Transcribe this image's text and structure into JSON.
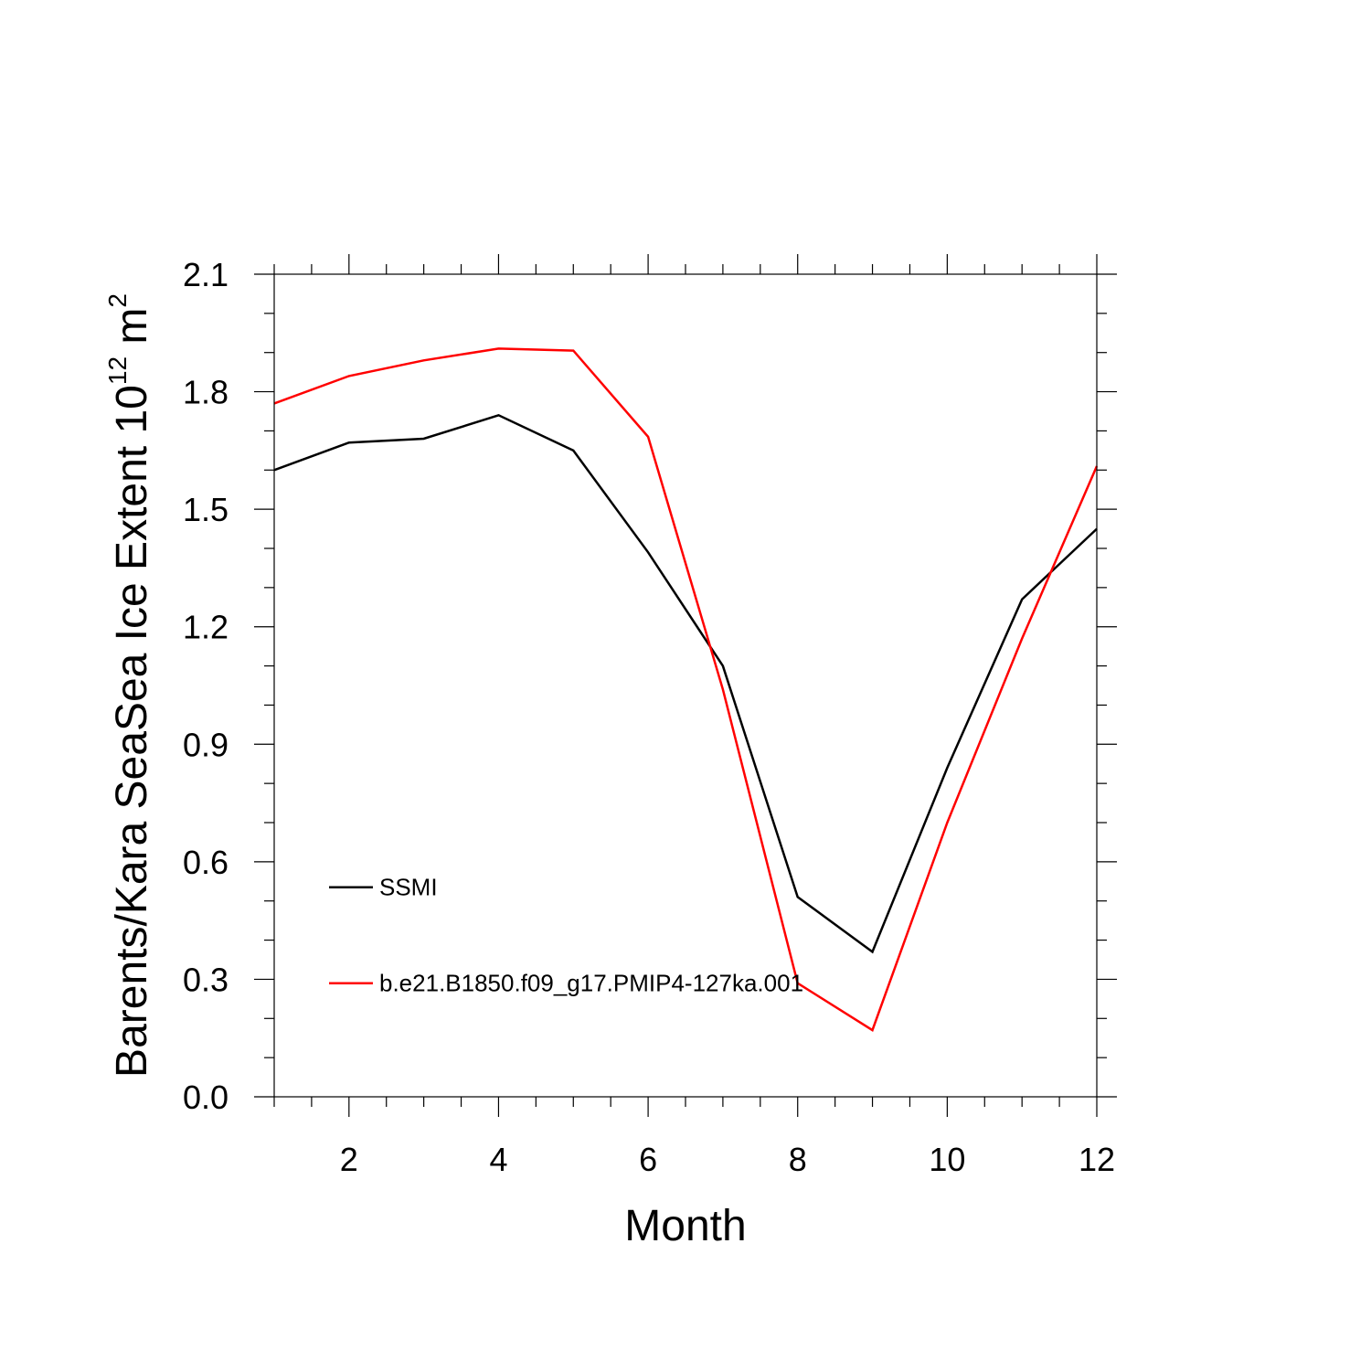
{
  "chart_data": {
    "type": "line",
    "title": "",
    "xlabel": "Month",
    "ylabel_main": "Barents/Kara SeaSea Ice Extent 10",
    "ylabel_exponent": "12",
    "ylabel_unit": " m",
    "ylabel_unit_exponent": "2",
    "xlim": [
      1,
      12
    ],
    "ylim": [
      0.0,
      2.1
    ],
    "x_major_ticks": [
      2,
      4,
      6,
      8,
      10,
      12
    ],
    "x_tick_labels": [
      "2",
      "4",
      "6",
      "8",
      "10",
      "12"
    ],
    "x_minor_step": 0.5,
    "y_major_ticks": [
      0.0,
      0.3,
      0.6,
      0.9,
      1.2,
      1.5,
      1.8,
      2.1
    ],
    "y_tick_labels": [
      "0.0",
      "0.3",
      "0.6",
      "0.9",
      "1.2",
      "1.5",
      "1.8",
      "2.1"
    ],
    "y_minor_step": 0.1,
    "grid": false,
    "legend_position": "inside-lower-left",
    "x": [
      1,
      2,
      3,
      4,
      5,
      6,
      7,
      8,
      9,
      10,
      11,
      12
    ],
    "series": [
      {
        "name": "SSMI",
        "color": "#000000",
        "values": [
          1.6,
          1.67,
          1.68,
          1.74,
          1.65,
          1.39,
          1.1,
          0.51,
          0.37,
          0.84,
          1.27,
          1.45
        ]
      },
      {
        "name": "b.e21.B1850.f09_g17.PMIP4-127ka.001",
        "color": "#ff0000",
        "values": [
          1.77,
          1.84,
          1.88,
          1.91,
          1.905,
          1.685,
          1.04,
          0.29,
          0.17,
          0.7,
          1.17,
          1.61
        ]
      }
    ]
  }
}
